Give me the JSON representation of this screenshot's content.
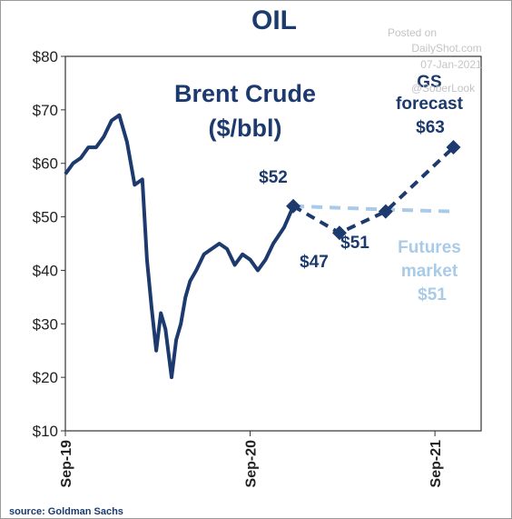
{
  "chart_data": {
    "type": "line",
    "title": "OIL",
    "ylim": [
      10,
      80
    ],
    "y_ticks": [
      "$80",
      "$70",
      "$60",
      "$50",
      "$40",
      "$30",
      "$20",
      "$10"
    ],
    "x_ticks": [
      "Sep-19",
      "Sep-20",
      "Sep-21"
    ],
    "xlim_months": [
      0,
      27
    ],
    "series": [
      {
        "name": "Brent Crude ($/bbl)",
        "color": "#1c3a6e",
        "style": "solid",
        "x": [
          0,
          0.5,
          1,
          1.5,
          2,
          2.5,
          3,
          3.5,
          4,
          4.5,
          5,
          5.3,
          5.6,
          5.9,
          6.2,
          6.5,
          6.9,
          7.2,
          7.5,
          7.8,
          8.1,
          8.5,
          9,
          9.5,
          10,
          10.5,
          11,
          11.5,
          12,
          12.5,
          13,
          13.5,
          14.2,
          14.8
        ],
        "y": [
          58,
          60,
          61,
          63,
          63,
          65,
          68,
          69,
          64,
          56,
          57,
          42,
          33,
          25,
          32,
          29,
          20,
          27,
          30,
          35,
          38,
          40,
          43,
          44,
          45,
          44,
          41,
          43,
          42,
          40,
          42,
          45,
          48,
          52
        ]
      },
      {
        "name": "GS forecast",
        "color": "#1c3a6e",
        "style": "dashed",
        "x": [
          14.8,
          17.8,
          20.8,
          25.2
        ],
        "y": [
          52,
          47,
          51,
          63
        ]
      },
      {
        "name": "Futures market",
        "color": "#a9cbe8",
        "style": "dashed",
        "x": [
          14.8,
          19.5,
          25.2
        ],
        "y": [
          52,
          51.5,
          51
        ]
      }
    ],
    "labels": {
      "series_title_line1": "Brent  Crude",
      "series_title_line2": "($/bbl)",
      "gs_line1": "GS",
      "gs_line2": "forecast",
      "gs_value": "$63",
      "point_52": "$52",
      "point_47": "$47",
      "point_51": "$51",
      "futures_line1": "Futures",
      "futures_line2": "market",
      "futures_value": "$51"
    },
    "watermark": [
      "Posted on",
      "DailyShot.com",
      "07-Jan-2021",
      "@SoberLook"
    ],
    "source": "source: Goldman Sachs",
    "grid": false
  }
}
